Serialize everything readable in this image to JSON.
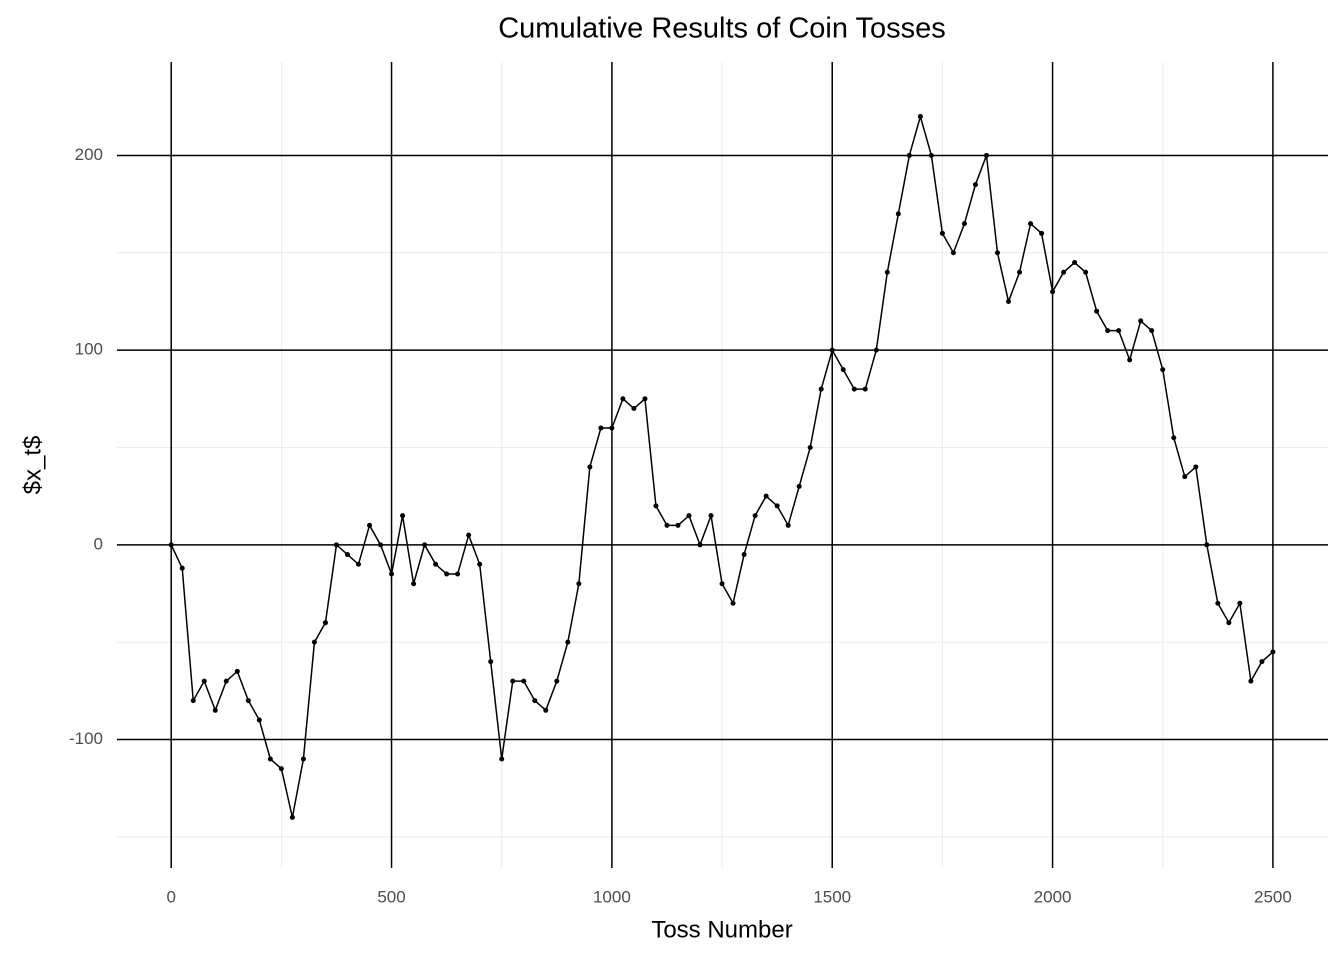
{
  "chart_data": {
    "type": "line",
    "title": "Cumulative Results of Coin Tosses",
    "x_label": "Toss Number",
    "y_label": "$x_t$",
    "x": [
      0,
      25,
      50,
      75,
      100,
      125,
      150,
      175,
      200,
      225,
      250,
      275,
      300,
      325,
      350,
      375,
      400,
      425,
      450,
      475,
      500,
      525,
      550,
      575,
      600,
      625,
      650,
      675,
      700,
      725,
      750,
      775,
      800,
      825,
      850,
      875,
      900,
      925,
      950,
      975,
      1000,
      1025,
      1050,
      1075,
      1100,
      1125,
      1150,
      1175,
      1200,
      1225,
      1250,
      1275,
      1300,
      1325,
      1350,
      1375,
      1400,
      1425,
      1450,
      1475,
      1500,
      1525,
      1550,
      1575,
      1600,
      1625,
      1650,
      1675,
      1700,
      1725,
      1750,
      1775,
      1800,
      1825,
      1850,
      1875,
      1900,
      1925,
      1950,
      1975,
      2000,
      2025,
      2050,
      2075,
      2100,
      2125,
      2150,
      2175,
      2200,
      2225,
      2250,
      2275,
      2300,
      2325,
      2350,
      2375,
      2400,
      2425,
      2450,
      2475,
      2500
    ],
    "series": [
      {
        "color": "#000000",
        "values": [
          0,
          -12,
          -80,
          -70,
          -85,
          -70,
          -65,
          -80,
          -90,
          -110,
          -115,
          -140,
          -110,
          -50,
          -40,
          0,
          -5,
          -10,
          10,
          0,
          -15,
          15,
          -20,
          0,
          -10,
          -15,
          -15,
          5,
          -10,
          -60,
          -110,
          -70,
          -70,
          -80,
          -85,
          -70,
          -50,
          -20,
          40,
          60,
          60,
          75,
          70,
          75,
          20,
          10,
          10,
          15,
          0,
          15,
          -20,
          -30,
          -5,
          15,
          25,
          20,
          10,
          30,
          50,
          80,
          100,
          90,
          80,
          80,
          100,
          140,
          170,
          200,
          220,
          200,
          160,
          150,
          165,
          185,
          200,
          150,
          125,
          140,
          165,
          160,
          130,
          140,
          145,
          140,
          120,
          110,
          110,
          95,
          115,
          110,
          90,
          55,
          35,
          40,
          0,
          -30,
          -40,
          -30,
          -70,
          -60,
          -55
        ]
      }
    ],
    "xlim": [
      -123,
      2625
    ],
    "ylim": [
      -166,
      248
    ],
    "xticks": [
      0,
      500,
      1000,
      1500,
      2000,
      2500
    ],
    "yticks": [
      -100,
      0,
      100,
      200
    ],
    "x_minor_ticks": [
      250,
      750,
      1250,
      1750,
      2250
    ],
    "y_minor_ticks": [
      -150,
      -50,
      50,
      150
    ],
    "grid": true
  }
}
